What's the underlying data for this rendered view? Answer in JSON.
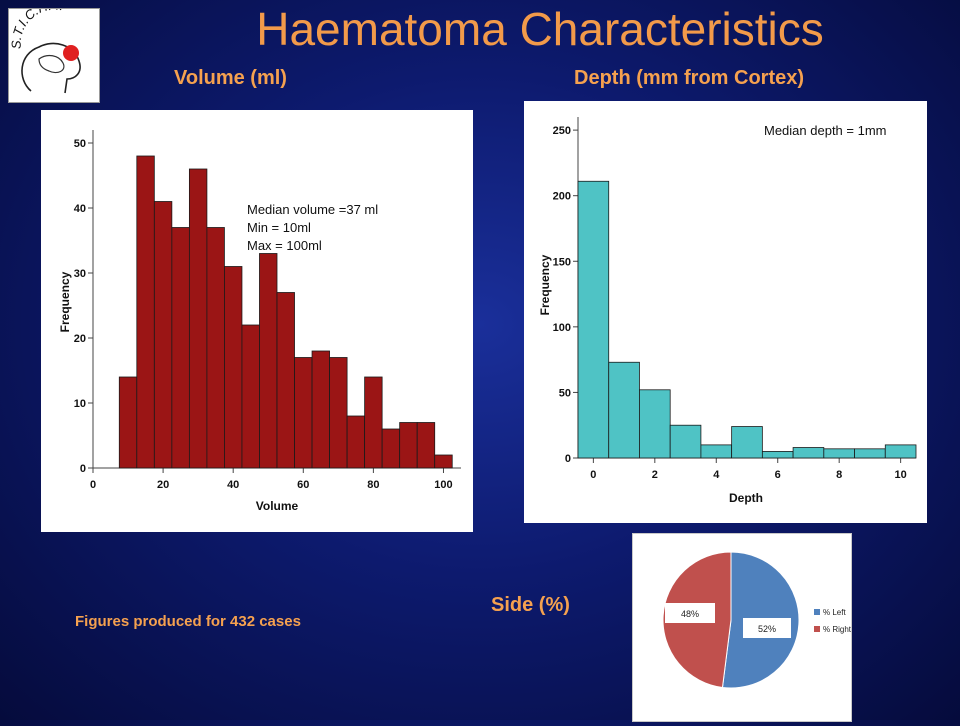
{
  "slide": {
    "title": "Haematoma Characteristics",
    "logo_text": "S.T.I.C.H. II",
    "volume_heading": "Volume (ml)",
    "depth_heading": "Depth (mm from Cortex)",
    "side_heading": "Side (%)",
    "footnote": "Figures produced for 432 cases"
  },
  "chart_data": [
    {
      "type": "bar",
      "subtype": "histogram",
      "xlabel": "Volume",
      "ylabel": "Frequency",
      "xlim": [
        0,
        105
      ],
      "ylim": [
        0,
        52
      ],
      "xticks": [
        0,
        20,
        40,
        60,
        80,
        100
      ],
      "yticks": [
        0,
        10,
        20,
        30,
        40,
        50
      ],
      "bin_width": 5,
      "bin_starts": [
        7.5,
        12.5,
        17.5,
        22.5,
        27.5,
        32.5,
        37.5,
        42.5,
        47.5,
        52.5,
        57.5,
        62.5,
        67.5,
        72.5,
        77.5,
        82.5,
        87.5,
        92.5,
        97.5
      ],
      "values": [
        14,
        48,
        41,
        37,
        46,
        37,
        31,
        22,
        33,
        27,
        17,
        18,
        17,
        8,
        14,
        6,
        7,
        7,
        2
      ],
      "color": "#9b1515",
      "annotations": [
        "Median volume =37 ml",
        "Min = 10ml",
        "Max = 100ml"
      ]
    },
    {
      "type": "bar",
      "subtype": "histogram",
      "xlabel": "Depth",
      "ylabel": "Frequency",
      "xlim": [
        -0.5,
        10.5
      ],
      "ylim": [
        0,
        260
      ],
      "xticks": [
        0,
        2,
        4,
        6,
        8,
        10
      ],
      "yticks": [
        0,
        50,
        100,
        150,
        200,
        250
      ],
      "bin_width": 1,
      "bin_starts": [
        -0.5,
        0.5,
        1.5,
        2.5,
        3.5,
        4.5,
        5.5,
        6.5,
        7.5,
        8.5,
        9.5
      ],
      "values": [
        211,
        73,
        52,
        25,
        10,
        24,
        5,
        8,
        7,
        7,
        10
      ],
      "color": "#4fc3c5",
      "annotations": [
        "Median depth = 1mm"
      ]
    },
    {
      "type": "pie",
      "slices": [
        {
          "label": "% Left",
          "value": 52,
          "text": "52%",
          "color": "#4f81bd"
        },
        {
          "label": "% Right",
          "value": 48,
          "text": "48%",
          "color": "#c0504d"
        }
      ]
    }
  ]
}
